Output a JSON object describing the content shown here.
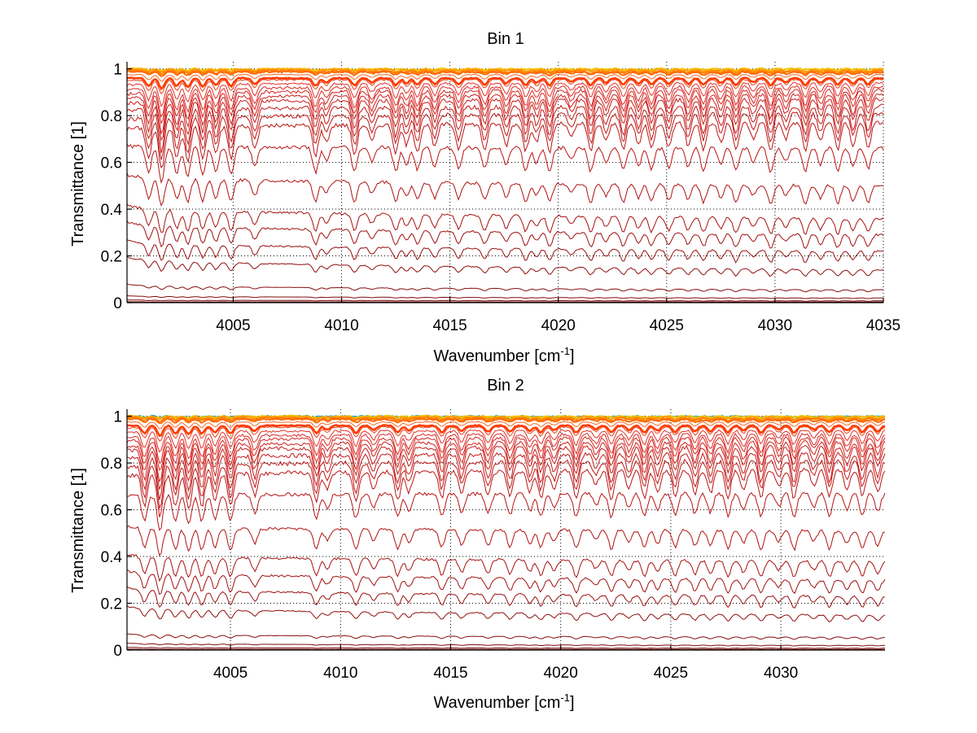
{
  "chart_data": [
    {
      "type": "line",
      "title": "Bin 1",
      "xlabel": "Wavenumber [cm",
      "xlabel_sup": "-1",
      "xlabel_end": "]",
      "ylabel": "Transmittance [1]",
      "xlim": [
        4000.1,
        4035
      ],
      "ylim": [
        0,
        1.03
      ],
      "xticks": [
        4005,
        4010,
        4015,
        4020,
        4025,
        4030,
        4035
      ],
      "xtick_labels": [
        "4005",
        "4010",
        "4015",
        "4020",
        "4025",
        "4030",
        "4035"
      ],
      "yticks": [
        0,
        0.2,
        0.4,
        0.6,
        0.8,
        1
      ],
      "ytick_labels": [
        "0",
        "0.2",
        "0.4",
        "0.6",
        "0.8",
        "1"
      ],
      "grid": true,
      "absorption_lines": [
        4001.1,
        4001.7,
        4002.4,
        4002.9,
        4003.6,
        4004.2,
        4004.9,
        4006.0,
        4008.8,
        4009.3,
        4010.6,
        4011.4,
        4012.5,
        4013.0,
        4013.5,
        4014.3,
        4015.4,
        4016.6,
        4017.6,
        4018.5,
        4019.0,
        4019.6,
        4020.6,
        4021.5,
        4022.2,
        4023.0,
        4023.7,
        4024.3,
        4025.1,
        4026.0,
        4026.7,
        4027.5,
        4028.2,
        4029.0,
        4029.8,
        4030.5,
        4031.4,
        4032.1,
        4032.9,
        4033.6,
        4034.3
      ],
      "series": [
        {
          "name": "s1",
          "start": 1.0,
          "end": 1.0,
          "depth": 0.005,
          "color": "#f5c400"
        },
        {
          "name": "s2",
          "start": 1.0,
          "end": 0.995,
          "depth": 0.008,
          "color": "#ff9a00"
        },
        {
          "name": "s3",
          "start": 0.995,
          "end": 0.99,
          "depth": 0.01,
          "color": "#ff7f00"
        },
        {
          "name": "s4",
          "start": 0.99,
          "end": 0.985,
          "depth": 0.012,
          "color": "#ff6a00"
        },
        {
          "name": "s5",
          "start": 0.975,
          "end": 0.975,
          "depth": 0.02,
          "color": "#f26a2a"
        },
        {
          "name": "s6",
          "start": 0.96,
          "end": 0.96,
          "depth": 0.03,
          "color": "#ff3c00"
        },
        {
          "name": "s7",
          "start": 0.95,
          "end": 0.955,
          "depth": 0.04,
          "color": "#e8451f"
        },
        {
          "name": "s8",
          "start": 0.93,
          "end": 0.94,
          "depth": 0.06,
          "color": "#e2302a"
        },
        {
          "name": "s9",
          "start": 0.91,
          "end": 0.925,
          "depth": 0.08,
          "color": "#dc2a25"
        },
        {
          "name": "s10",
          "start": 0.89,
          "end": 0.91,
          "depth": 0.09,
          "color": "#d52420"
        },
        {
          "name": "s11",
          "start": 0.87,
          "end": 0.89,
          "depth": 0.1,
          "color": "#cf1f1c"
        },
        {
          "name": "s12",
          "start": 0.85,
          "end": 0.87,
          "depth": 0.11,
          "color": "#c81b1a"
        },
        {
          "name": "s13",
          "start": 0.82,
          "end": 0.84,
          "depth": 0.12,
          "color": "#c41818"
        },
        {
          "name": "s14",
          "start": 0.78,
          "end": 0.81,
          "depth": 0.12,
          "color": "#c01616"
        },
        {
          "name": "s15",
          "start": 0.74,
          "end": 0.77,
          "depth": 0.12,
          "color": "#bc1414"
        },
        {
          "name": "s16",
          "start": 0.67,
          "end": 0.66,
          "depth": 0.1,
          "color": "#b81313"
        },
        {
          "name": "s17",
          "start": 0.55,
          "end": 0.5,
          "depth": 0.08,
          "color": "#b01212"
        },
        {
          "name": "s18",
          "start": 0.42,
          "end": 0.36,
          "depth": 0.07,
          "color": "#a81111"
        },
        {
          "name": "s19",
          "start": 0.35,
          "end": 0.29,
          "depth": 0.06,
          "color": "#a01010"
        },
        {
          "name": "s20",
          "start": 0.27,
          "end": 0.22,
          "depth": 0.05,
          "color": "#980f0f"
        },
        {
          "name": "s21",
          "start": 0.2,
          "end": 0.14,
          "depth": 0.03,
          "color": "#900e0e"
        },
        {
          "name": "s22",
          "start": 0.08,
          "end": 0.055,
          "depth": 0.01,
          "color": "#880d0d"
        },
        {
          "name": "s23",
          "start": 0.03,
          "end": 0.02,
          "depth": 0.003,
          "color": "#800c0c"
        },
        {
          "name": "s24",
          "start": 0.012,
          "end": 0.008,
          "depth": 0.002,
          "color": "#7a0b0b"
        },
        {
          "name": "s25",
          "start": 0.004,
          "end": 0.003,
          "depth": 0.001,
          "color": "#700a0a"
        }
      ]
    },
    {
      "type": "line",
      "title": "Bin 2",
      "xlabel": "Wavenumber [cm",
      "xlabel_sup": "-1",
      "xlabel_end": "]",
      "ylabel": "Transmittance [1]",
      "xlim": [
        4000.3,
        4034.73
      ],
      "ylim": [
        0,
        1.03
      ],
      "xticks": [
        4005,
        4010,
        4015,
        4020,
        4025,
        4030
      ],
      "xtick_labels": [
        "4005",
        "4010",
        "4015",
        "4020",
        "4025",
        "4030"
      ],
      "yticks": [
        0,
        0.2,
        0.4,
        0.6,
        0.8,
        1
      ],
      "ytick_labels": [
        "0",
        "0.2",
        "0.4",
        "0.6",
        "0.8",
        "1"
      ],
      "grid": true,
      "absorption_lines": [
        4001.1,
        4001.8,
        4002.5,
        4003.1,
        4003.7,
        4004.3,
        4005.0,
        4006.1,
        4008.9,
        4009.4,
        4010.7,
        4011.5,
        4012.6,
        4013.1,
        4014.6,
        4015.5,
        4016.7,
        4017.7,
        4018.6,
        4019.1,
        4019.7,
        4020.7,
        4021.6,
        4022.3,
        4023.1,
        4023.8,
        4024.4,
        4025.2,
        4026.1,
        4026.8,
        4027.6,
        4028.3,
        4029.1,
        4029.9,
        4030.6,
        4031.5,
        4032.2,
        4033.0,
        4033.7,
        4034.4
      ],
      "series": [
        {
          "name": "s0",
          "start": 1.0,
          "end": 1.0,
          "depth": 0.004,
          "color": "#2aa8d8"
        },
        {
          "name": "s1",
          "start": 1.0,
          "end": 1.0,
          "depth": 0.005,
          "color": "#f5c400"
        },
        {
          "name": "s2",
          "start": 1.0,
          "end": 0.995,
          "depth": 0.008,
          "color": "#ff9a00"
        },
        {
          "name": "s3",
          "start": 0.995,
          "end": 0.99,
          "depth": 0.01,
          "color": "#ff7f00"
        },
        {
          "name": "s4",
          "start": 0.99,
          "end": 0.985,
          "depth": 0.012,
          "color": "#ff6a00"
        },
        {
          "name": "s5",
          "start": 0.975,
          "end": 0.975,
          "depth": 0.02,
          "color": "#f26a2a"
        },
        {
          "name": "s6",
          "start": 0.96,
          "end": 0.96,
          "depth": 0.03,
          "color": "#ff3c00"
        },
        {
          "name": "s7",
          "start": 0.95,
          "end": 0.955,
          "depth": 0.04,
          "color": "#e8451f"
        },
        {
          "name": "s8",
          "start": 0.93,
          "end": 0.94,
          "depth": 0.06,
          "color": "#e2302a"
        },
        {
          "name": "s9",
          "start": 0.91,
          "end": 0.925,
          "depth": 0.08,
          "color": "#dc2a25"
        },
        {
          "name": "s10",
          "start": 0.89,
          "end": 0.91,
          "depth": 0.09,
          "color": "#d52420"
        },
        {
          "name": "s11",
          "start": 0.87,
          "end": 0.89,
          "depth": 0.1,
          "color": "#cf1f1c"
        },
        {
          "name": "s12",
          "start": 0.85,
          "end": 0.87,
          "depth": 0.11,
          "color": "#c81b1a"
        },
        {
          "name": "s13",
          "start": 0.82,
          "end": 0.84,
          "depth": 0.12,
          "color": "#c41818"
        },
        {
          "name": "s14",
          "start": 0.78,
          "end": 0.81,
          "depth": 0.12,
          "color": "#c01616"
        },
        {
          "name": "s15",
          "start": 0.74,
          "end": 0.77,
          "depth": 0.12,
          "color": "#bc1414"
        },
        {
          "name": "s16",
          "start": 0.66,
          "end": 0.67,
          "depth": 0.1,
          "color": "#b81313"
        },
        {
          "name": "s17",
          "start": 0.53,
          "end": 0.51,
          "depth": 0.08,
          "color": "#b01212"
        },
        {
          "name": "s18",
          "start": 0.41,
          "end": 0.38,
          "depth": 0.07,
          "color": "#a81111"
        },
        {
          "name": "s19",
          "start": 0.34,
          "end": 0.3,
          "depth": 0.06,
          "color": "#a01010"
        },
        {
          "name": "s20",
          "start": 0.27,
          "end": 0.23,
          "depth": 0.05,
          "color": "#980f0f"
        },
        {
          "name": "s21",
          "start": 0.19,
          "end": 0.15,
          "depth": 0.03,
          "color": "#900e0e"
        },
        {
          "name": "s22",
          "start": 0.07,
          "end": 0.055,
          "depth": 0.01,
          "color": "#880d0d"
        },
        {
          "name": "s23",
          "start": 0.03,
          "end": 0.02,
          "depth": 0.003,
          "color": "#800c0c"
        },
        {
          "name": "s24",
          "start": 0.012,
          "end": 0.008,
          "depth": 0.002,
          "color": "#7a0b0b"
        },
        {
          "name": "s25",
          "start": 0.004,
          "end": 0.003,
          "depth": 0.001,
          "color": "#700a0a"
        }
      ]
    }
  ]
}
